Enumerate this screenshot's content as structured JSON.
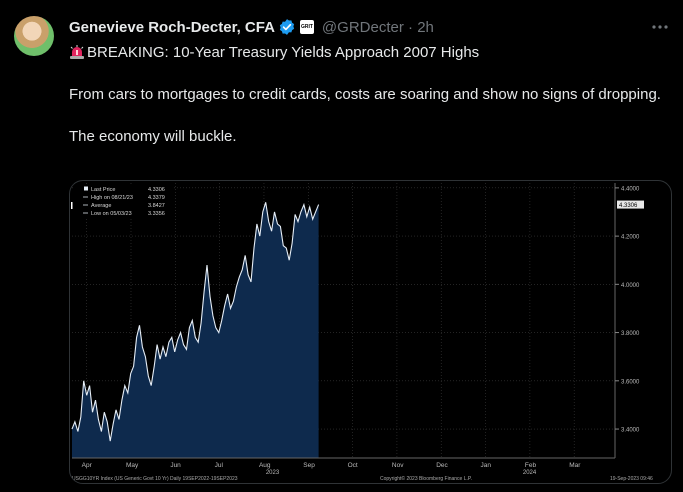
{
  "tweet": {
    "author_name": "Genevieve Roch-Decter, CFA",
    "org_badge_text": "GRIT",
    "handle": "@GRDecter",
    "separator": "·",
    "time": "2h",
    "text_line1": "BREAKING: 10-Year Treasury Yields Approach 2007 Highs",
    "text_paragraph2": "From cars to mortgages to credit cards, costs are soaring and show no signs of dropping.",
    "text_paragraph3": "The economy will buckle.",
    "icons": {
      "avatar": "avatar-photo",
      "verified": "verified-badge-icon",
      "more": "more-options-icon",
      "siren": "siren-emoji-icon"
    },
    "colors": {
      "verified": "#1d9bf0",
      "siren": "#e0245e"
    }
  },
  "chart_data": {
    "type": "area",
    "legend": [
      {
        "label": "Last Price",
        "value": "4.3306"
      },
      {
        "label": "High on 08/21/23",
        "value": "4.3379"
      },
      {
        "label": "Average",
        "value": "3.8427"
      },
      {
        "label": "Low on 05/03/23",
        "value": "3.3356"
      }
    ],
    "last_price_tag": "4.3306",
    "y_ticks": [
      "4.4000",
      "4.2000",
      "4.0000",
      "3.8000",
      "3.6000",
      "3.4000"
    ],
    "x_ticks": [
      "Apr",
      "May",
      "Jun",
      "Jul",
      "Aug",
      "Sep",
      "Oct",
      "Nov",
      "Dec",
      "Jan",
      "Feb",
      "Mar"
    ],
    "x_year_labels": [
      "2023",
      "2024"
    ],
    "ylim": [
      3.28,
      4.42
    ],
    "xlim": [
      0,
      370
    ],
    "x": [
      0,
      2,
      4,
      6,
      8,
      10,
      12,
      14,
      16,
      18,
      20,
      22,
      24,
      26,
      28,
      30,
      32,
      34,
      36,
      38,
      40,
      42,
      44,
      46,
      48,
      50,
      52,
      54,
      56,
      58,
      60,
      62,
      64,
      66,
      68,
      70,
      72,
      74,
      76,
      78,
      80,
      82,
      84,
      86,
      88,
      90,
      92,
      94,
      96,
      98,
      100,
      102,
      104,
      106,
      108,
      110,
      112,
      114,
      116,
      118,
      120,
      122,
      124,
      126,
      128,
      130,
      132,
      134,
      136,
      138,
      140,
      142,
      144,
      146,
      148,
      150,
      152,
      154,
      156,
      158,
      160,
      162,
      164,
      166,
      168
    ],
    "y": [
      3.4,
      3.43,
      3.39,
      3.45,
      3.6,
      3.54,
      3.58,
      3.47,
      3.52,
      3.44,
      3.39,
      3.47,
      3.43,
      3.35,
      3.42,
      3.48,
      3.44,
      3.52,
      3.58,
      3.55,
      3.63,
      3.66,
      3.78,
      3.83,
      3.74,
      3.7,
      3.62,
      3.58,
      3.66,
      3.75,
      3.69,
      3.74,
      3.7,
      3.76,
      3.78,
      3.72,
      3.77,
      3.8,
      3.75,
      3.73,
      3.82,
      3.85,
      3.78,
      3.76,
      3.84,
      3.97,
      4.08,
      3.95,
      3.87,
      3.82,
      3.8,
      3.85,
      3.91,
      3.96,
      3.9,
      3.93,
      3.99,
      4.03,
      4.06,
      4.12,
      4.04,
      4.01,
      4.15,
      4.25,
      4.2,
      4.3,
      4.34,
      4.26,
      4.22,
      4.3,
      4.25,
      4.24,
      4.16,
      4.15,
      4.1,
      4.17,
      4.29,
      4.26,
      4.3,
      4.33,
      4.28,
      4.32,
      4.27,
      4.3,
      4.3306
    ],
    "footer_left": "USGG10YR Index (US Generic Govt 10 Yr)  Daily 19SEP2022-19SEP2023",
    "footer_center": "Copyright© 2023 Bloomberg Finance L.P.",
    "footer_right": "19-Sep-2023 09:46",
    "colors": {
      "fill": "#0e2a4d",
      "line": "#e6eef7",
      "grid": "#3a3a3a",
      "tag_bg": "#e8e8e8"
    }
  }
}
